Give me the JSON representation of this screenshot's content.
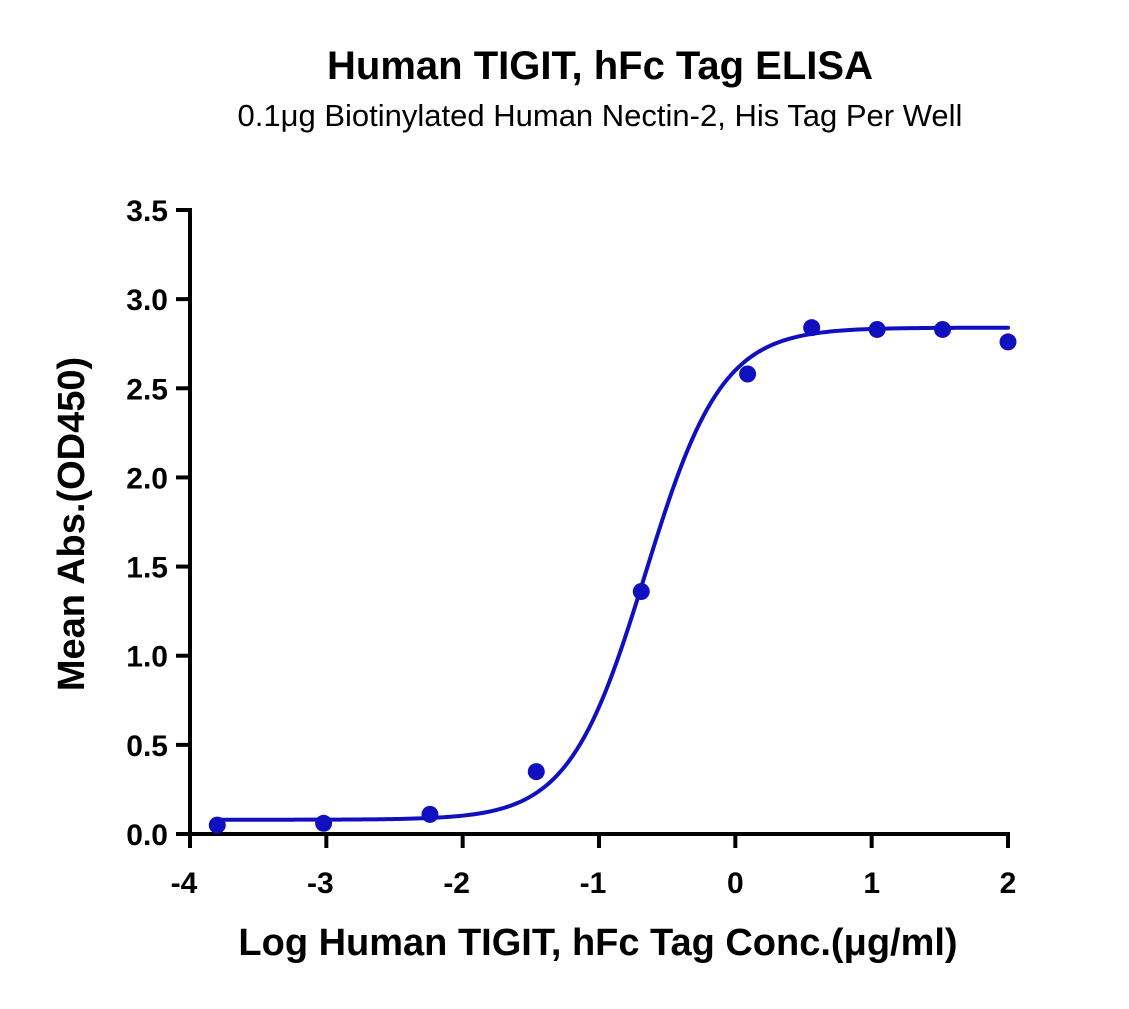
{
  "chart_data": {
    "type": "scatter",
    "title": "Human TIGIT, hFc Tag ELISA",
    "subtitle": "0.1μg Biotinylated Human Nectin-2, His Tag Per Well",
    "xlabel": "Log Human TIGIT, hFc Tag Conc.(μg/ml)",
    "ylabel": "Mean Abs.(OD450)",
    "xlim": [
      -4,
      2
    ],
    "ylim": [
      0,
      3.5
    ],
    "x_ticks": [
      "-4",
      "-3",
      "-2",
      "-1",
      "0",
      "1",
      "2"
    ],
    "y_ticks": [
      "0.0",
      "0.5",
      "1.0",
      "1.5",
      "2.0",
      "2.5",
      "3.0",
      "3.5"
    ],
    "grid": false,
    "series": [
      {
        "color": "#1010C0",
        "points": [
          {
            "x": -3.8,
            "y": 0.05
          },
          {
            "x": -3.02,
            "y": 0.06
          },
          {
            "x": -2.24,
            "y": 0.11
          },
          {
            "x": -1.46,
            "y": 0.35
          },
          {
            "x": -0.69,
            "y": 1.36
          },
          {
            "x": 0.09,
            "y": 2.58
          },
          {
            "x": 0.56,
            "y": 2.84
          },
          {
            "x": 1.04,
            "y": 2.83
          },
          {
            "x": 1.52,
            "y": 2.83
          },
          {
            "x": 2.0,
            "y": 2.76
          }
        ],
        "fit": {
          "model": "4PL",
          "bottom": 0.08,
          "top": 2.84,
          "log_ec50": -0.66,
          "hill": 1.55
        }
      }
    ]
  }
}
